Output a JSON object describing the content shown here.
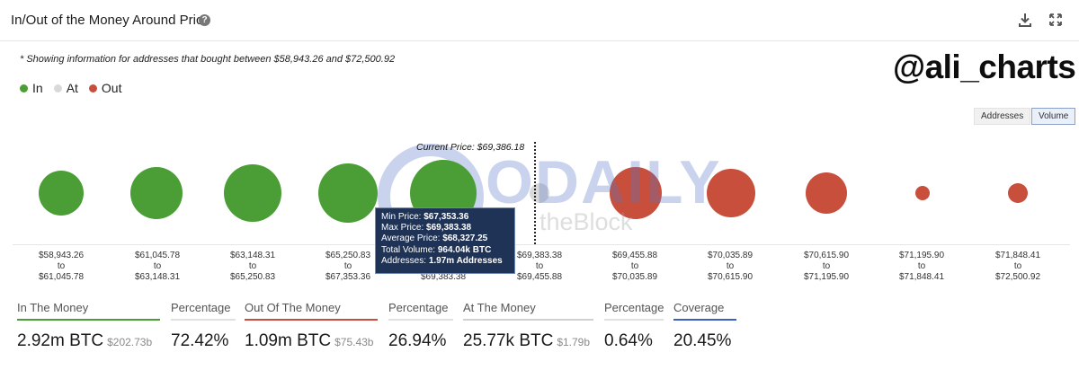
{
  "header": {
    "title": "In/Out of the Money Around Price",
    "help_icon": "question-circle-icon",
    "download_icon": "download-icon",
    "expand_icon": "expand-icon"
  },
  "note": "* Showing information for addresses that bought between $58,943.26 and $72,500.92",
  "watermark_handle": "@ali_charts",
  "legend": [
    {
      "label": "In",
      "color": "#4a9e35"
    },
    {
      "label": "At",
      "color": "#d9d9d9"
    },
    {
      "label": "Out",
      "color": "#c84f3c"
    }
  ],
  "toggles": {
    "addresses": "Addresses",
    "volume": "Volume",
    "selected": "Volume"
  },
  "current_price_label": "Current Price: $69,386.18",
  "watermark": {
    "brand": "ODAILY",
    "sub": "theBlock"
  },
  "buckets": [
    {
      "from": "$58,943.26",
      "to_word": "to",
      "to": "$61,045.78",
      "status": "in"
    },
    {
      "from": "$61,045.78",
      "to_word": "to",
      "to": "$63,148.31",
      "status": "in"
    },
    {
      "from": "$63,148.31",
      "to_word": "to",
      "to": "$65,250.83",
      "status": "in"
    },
    {
      "from": "$65,250.83",
      "to_word": "to",
      "to": "$67,353.36",
      "status": "in"
    },
    {
      "from": "",
      "to_word": "",
      "to": "$69,383.38",
      "status": "in"
    },
    {
      "from": "$69,383.38",
      "to_word": "to",
      "to": "$69,455.88",
      "status": "at"
    },
    {
      "from": "$69,455.88",
      "to_word": "to",
      "to": "$70,035.89",
      "status": "out"
    },
    {
      "from": "$70,035.89",
      "to_word": "to",
      "to": "$70,615.90",
      "status": "out"
    },
    {
      "from": "$70,615.90",
      "to_word": "to",
      "to": "$71,195.90",
      "status": "out"
    },
    {
      "from": "$71,195.90",
      "to_word": "to",
      "to": "$71,848.41",
      "status": "out"
    },
    {
      "from": "$71,848.41",
      "to_word": "to",
      "to": "$72,500.92",
      "status": "out"
    }
  ],
  "tooltip": {
    "min_label": "Min Price:",
    "min_value": "$67,353.36",
    "max_label": "Max Price:",
    "max_value": "$69,383.38",
    "avg_label": "Average Price:",
    "avg_value": "$68,327.25",
    "vol_label": "Total Volume:",
    "vol_value": "964.04k BTC",
    "addr_label": "Addresses:",
    "addr_value": "1.97m Addresses"
  },
  "stats": {
    "in_money": {
      "label": "In The Money",
      "value": "2.92m BTC",
      "sub": "$202.73b"
    },
    "in_pct": {
      "label": "Percentage",
      "value": "72.42%"
    },
    "out_money": {
      "label": "Out Of The Money",
      "value": "1.09m BTC",
      "sub": "$75.43b"
    },
    "out_pct": {
      "label": "Percentage",
      "value": "26.94%"
    },
    "at_money": {
      "label": "At The Money",
      "value": "25.77k BTC",
      "sub": "$1.79b"
    },
    "at_pct": {
      "label": "Percentage",
      "value": "0.64%"
    },
    "coverage": {
      "label": "Coverage",
      "value": "20.45%"
    }
  },
  "colors": {
    "in": "#4a9e35",
    "at": "#d9d9d9",
    "out": "#c84f3c",
    "coverage": "#3b5fc8"
  }
}
